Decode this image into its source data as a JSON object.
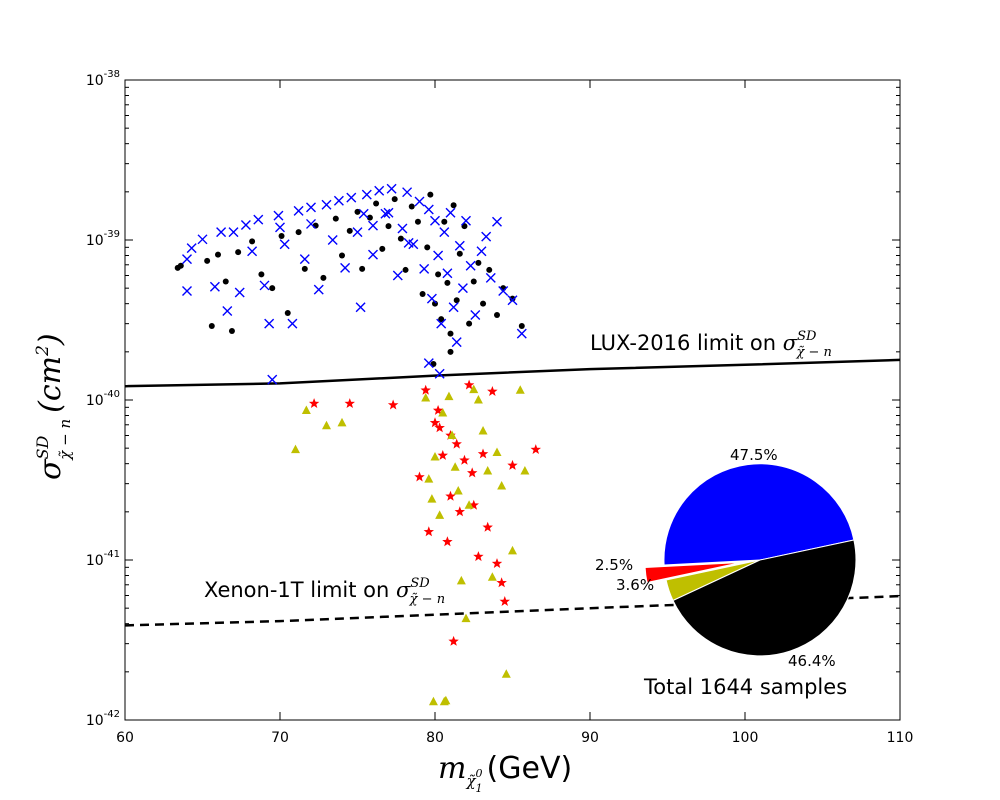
{
  "chart_data": {
    "type": "scatter",
    "title": "",
    "xlabel": {
      "symbol": "m",
      "subscript": "χ̃",
      "subsup": "0",
      "subsub": "1",
      "unit": "(GeV)"
    },
    "ylabel": {
      "symbol": "σ",
      "sup": "SD",
      "sub": "χ̃ − n",
      "unit": "(cm",
      "unit_sup": "2",
      "unit_close": ")"
    },
    "x_axis": {
      "range": [
        60,
        110
      ],
      "scale": "linear",
      "ticks": [
        "60",
        "70",
        "80",
        "90",
        "100",
        "110"
      ]
    },
    "y_axis": {
      "range": [
        1e-42,
        1e-38
      ],
      "scale": "log",
      "ticks": [
        {
          "base": "10",
          "exp": "-42",
          "value": 1e-42
        },
        {
          "base": "10",
          "exp": "-41",
          "value": 1e-41
        },
        {
          "base": "10",
          "exp": "-40",
          "value": 1e-40
        },
        {
          "base": "10",
          "exp": "-39",
          "value": 1e-39
        },
        {
          "base": "10",
          "exp": "-38",
          "value": 1e-38
        }
      ]
    },
    "limit_lines": [
      {
        "name": "LUX-2016",
        "style": "solid",
        "points": [
          [
            60,
            1.22e-40
          ],
          [
            70,
            1.27e-40
          ],
          [
            80,
            1.42e-40
          ],
          [
            90,
            1.56e-40
          ],
          [
            100,
            1.66e-40
          ],
          [
            110,
            1.78e-40
          ]
        ],
        "label": {
          "text": "LUX-2016 limit on ",
          "symbol": "σ",
          "sup": "SD",
          "sub": "χ̃ − n"
        }
      },
      {
        "name": "Xenon-1T",
        "style": "dashed",
        "points": [
          [
            60,
            3.9e-42
          ],
          [
            70,
            4.15e-42
          ],
          [
            80,
            4.55e-42
          ],
          [
            90,
            5e-42
          ],
          [
            100,
            5.45e-42
          ],
          [
            110,
            5.95e-42
          ]
        ],
        "label": {
          "text": "Xenon-1T limit on ",
          "symbol": "σ",
          "sup": "SD",
          "sub": "χ̃ − n"
        }
      }
    ],
    "series": [
      {
        "name": "black-circles",
        "marker": "circle",
        "color": "#000000",
        "points": [
          [
            63.4,
            6.7e-40
          ],
          [
            63.6,
            6.9e-40
          ],
          [
            65.3,
            7.4e-40
          ],
          [
            65.6,
            2.9e-40
          ],
          [
            66.0,
            8.1e-40
          ],
          [
            66.5,
            5.5e-40
          ],
          [
            66.9,
            2.7e-40
          ],
          [
            67.3,
            8.4e-40
          ],
          [
            68.2,
            9.8e-40
          ],
          [
            68.8,
            6.1e-40
          ],
          [
            69.5,
            5e-40
          ],
          [
            70.1,
            1.06e-39
          ],
          [
            70.5,
            3.5e-40
          ],
          [
            71.2,
            1.12e-39
          ],
          [
            71.6,
            6.6e-40
          ],
          [
            72.3,
            1.23e-39
          ],
          [
            72.8,
            5.8e-40
          ],
          [
            73.6,
            1.36e-39
          ],
          [
            74.0,
            8e-40
          ],
          [
            74.5,
            1.14e-39
          ],
          [
            75.0,
            1.5e-39
          ],
          [
            75.3,
            6.6e-40
          ],
          [
            75.8,
            1.38e-39
          ],
          [
            76.2,
            1.69e-39
          ],
          [
            76.6,
            8.8e-40
          ],
          [
            77.0,
            1.22e-39
          ],
          [
            77.4,
            1.8e-39
          ],
          [
            77.8,
            1.02e-39
          ],
          [
            78.1,
            6.5e-40
          ],
          [
            78.5,
            1.62e-39
          ],
          [
            78.9,
            1.3e-39
          ],
          [
            79.2,
            4.6e-40
          ],
          [
            79.5,
            9e-40
          ],
          [
            79.7,
            1.92e-39
          ],
          [
            80.0,
            4e-40
          ],
          [
            80.2,
            6.1e-40
          ],
          [
            80.4,
            3.2e-40
          ],
          [
            80.6,
            1.3e-39
          ],
          [
            80.8,
            5.4e-40
          ],
          [
            81.0,
            2.6e-40
          ],
          [
            81.2,
            1.65e-39
          ],
          [
            81.4,
            4.2e-40
          ],
          [
            81.6,
            8.2e-40
          ],
          [
            81.9,
            1.22e-39
          ],
          [
            82.2,
            3e-40
          ],
          [
            82.5,
            5.5e-40
          ],
          [
            82.8,
            7.2e-40
          ],
          [
            83.1,
            4e-40
          ],
          [
            83.5,
            6.5e-40
          ],
          [
            84.0,
            3.4e-40
          ],
          [
            84.4,
            5e-40
          ],
          [
            85.0,
            4.3e-40
          ],
          [
            85.6,
            2.9e-40
          ],
          [
            79.9,
            1.68e-40
          ],
          [
            81.0,
            2e-40
          ]
        ]
      },
      {
        "name": "blue-crosses",
        "marker": "x",
        "color": "#0000ff",
        "points": [
          [
            64.0,
            7.6e-40
          ],
          [
            64.3,
            8.9e-40
          ],
          [
            64.0,
            4.8e-40
          ],
          [
            65.0,
            1.01e-39
          ],
          [
            65.8,
            5.1e-40
          ],
          [
            66.2,
            1.12e-39
          ],
          [
            66.6,
            3.6e-40
          ],
          [
            67.0,
            1.12e-39
          ],
          [
            67.4,
            4.7e-40
          ],
          [
            67.8,
            1.24e-39
          ],
          [
            68.2,
            8.5e-40
          ],
          [
            68.6,
            1.34e-39
          ],
          [
            69.0,
            5.2e-40
          ],
          [
            69.3,
            3e-40
          ],
          [
            69.5,
            1.34e-40
          ],
          [
            69.9,
            1.42e-39
          ],
          [
            70.3,
            9.4e-40
          ],
          [
            70.8,
            3e-40
          ],
          [
            71.2,
            1.52e-39
          ],
          [
            71.6,
            7.6e-40
          ],
          [
            72.0,
            1.6e-39
          ],
          [
            72.5,
            4.9e-40
          ],
          [
            73.0,
            1.66e-39
          ],
          [
            73.4,
            1e-39
          ],
          [
            73.8,
            1.76e-39
          ],
          [
            74.2,
            6.7e-40
          ],
          [
            74.6,
            1.84e-39
          ],
          [
            75.0,
            1.12e-39
          ],
          [
            75.2,
            3.8e-40
          ],
          [
            75.6,
            1.92e-39
          ],
          [
            76.0,
            8.1e-40
          ],
          [
            76.4,
            2.03e-39
          ],
          [
            76.8,
            1.46e-39
          ],
          [
            77.2,
            2.09e-39
          ],
          [
            77.6,
            6e-40
          ],
          [
            77.9,
            1.18e-39
          ],
          [
            78.2,
            1.99e-39
          ],
          [
            78.6,
            9.4e-40
          ],
          [
            79.0,
            1.74e-39
          ],
          [
            79.3,
            6.6e-40
          ],
          [
            79.6,
            1.55e-39
          ],
          [
            79.8,
            4.3e-40
          ],
          [
            80.0,
            1.32e-39
          ],
          [
            80.2,
            8e-40
          ],
          [
            80.4,
            3e-40
          ],
          [
            80.6,
            1.12e-39
          ],
          [
            80.8,
            6.2e-40
          ],
          [
            81.0,
            1.48e-39
          ],
          [
            81.2,
            3.8e-40
          ],
          [
            81.4,
            2.3e-40
          ],
          [
            81.6,
            9.2e-40
          ],
          [
            81.8,
            5e-40
          ],
          [
            82.0,
            1.32e-39
          ],
          [
            82.3,
            6.9e-40
          ],
          [
            82.6,
            3.4e-40
          ],
          [
            83.0,
            8.5e-40
          ],
          [
            83.3,
            1.05e-39
          ],
          [
            83.6,
            5.8e-40
          ],
          [
            84.0,
            1.3e-39
          ],
          [
            84.4,
            4.8e-40
          ],
          [
            85.0,
            4.2e-40
          ],
          [
            85.6,
            2.6e-40
          ],
          [
            80.3,
            1.46e-40
          ],
          [
            79.6,
            1.7e-40
          ],
          [
            78.3,
            9.6e-40
          ],
          [
            77.0,
            1.48e-39
          ],
          [
            76.0,
            1.23e-39
          ],
          [
            75.4,
            1.46e-39
          ],
          [
            72.0,
            1.26e-39
          ],
          [
            70.0,
            1.2e-39
          ]
        ]
      },
      {
        "name": "red-stars",
        "marker": "star",
        "color": "#ff0000",
        "points": [
          [
            72.2,
            9.5e-41
          ],
          [
            74.5,
            9.5e-41
          ],
          [
            77.3,
            9.3e-41
          ],
          [
            79.0,
            3.3e-41
          ],
          [
            79.4,
            1.15e-40
          ],
          [
            79.6,
            1.5e-41
          ],
          [
            80.0,
            7.2e-41
          ],
          [
            80.3,
            6.7e-41
          ],
          [
            80.5,
            4.5e-41
          ],
          [
            80.8,
            1.3e-41
          ],
          [
            81.0,
            2.5e-41
          ],
          [
            81.2,
            3.1e-42
          ],
          [
            81.4,
            5.3e-41
          ],
          [
            81.6,
            2e-41
          ],
          [
            81.9,
            4.2e-41
          ],
          [
            82.2,
            1.24e-40
          ],
          [
            82.5,
            2.2e-41
          ],
          [
            82.8,
            1.05e-41
          ],
          [
            83.1,
            4.6e-41
          ],
          [
            83.4,
            1.6e-41
          ],
          [
            83.7,
            1.13e-40
          ],
          [
            84.0,
            9.5e-42
          ],
          [
            84.3,
            7.2e-42
          ],
          [
            84.5,
            5.5e-42
          ],
          [
            85.0,
            3.9e-41
          ],
          [
            86.5,
            4.9e-41
          ],
          [
            82.4,
            3.5e-41
          ],
          [
            81.0,
            6e-41
          ],
          [
            80.2,
            8.6e-41
          ]
        ]
      },
      {
        "name": "olive-triangles",
        "marker": "triangle",
        "color": "#bfbf00",
        "points": [
          [
            71.0,
            4.9e-41
          ],
          [
            71.7,
            8.6e-41
          ],
          [
            73.0,
            6.9e-41
          ],
          [
            74.0,
            7.2e-41
          ],
          [
            79.4,
            1.03e-40
          ],
          [
            79.6,
            3.2e-41
          ],
          [
            79.8,
            2.4e-41
          ],
          [
            80.0,
            4.4e-41
          ],
          [
            80.3,
            1.9e-41
          ],
          [
            80.5,
            8.3e-41
          ],
          [
            80.7,
            1.32e-42
          ],
          [
            80.9,
            1.05e-40
          ],
          [
            81.1,
            6e-41
          ],
          [
            81.3,
            3.8e-41
          ],
          [
            81.5,
            2.7e-41
          ],
          [
            81.7,
            7.4e-42
          ],
          [
            82.0,
            4.3e-42
          ],
          [
            82.2,
            2.2e-41
          ],
          [
            82.5,
            1.16e-40
          ],
          [
            82.8,
            1e-40
          ],
          [
            83.1,
            6.4e-41
          ],
          [
            83.4,
            3.6e-41
          ],
          [
            83.7,
            7.8e-42
          ],
          [
            84.0,
            4.7e-41
          ],
          [
            84.3,
            2.9e-41
          ],
          [
            84.6,
            1.93e-42
          ],
          [
            85.0,
            1.14e-41
          ],
          [
            85.8,
            3.6e-41
          ],
          [
            85.5,
            1.15e-40
          ],
          [
            80.6,
            1.3e-42
          ],
          [
            79.9,
            1.3e-42
          ]
        ]
      }
    ],
    "pie": {
      "total_label": "Total 1644 samples",
      "slices": [
        {
          "name": "blue",
          "color": "#0000ff",
          "percent": 47.5,
          "label": "47.5%",
          "explode": 0
        },
        {
          "name": "red",
          "color": "#ff0000",
          "percent": 2.5,
          "label": "2.5%",
          "explode": 0.2
        },
        {
          "name": "olive",
          "color": "#bfbf00",
          "percent": 3.6,
          "label": "3.6%",
          "explode": 0
        },
        {
          "name": "black",
          "color": "#000000",
          "percent": 46.4,
          "label": "46.4%",
          "explode": 0
        }
      ]
    }
  }
}
